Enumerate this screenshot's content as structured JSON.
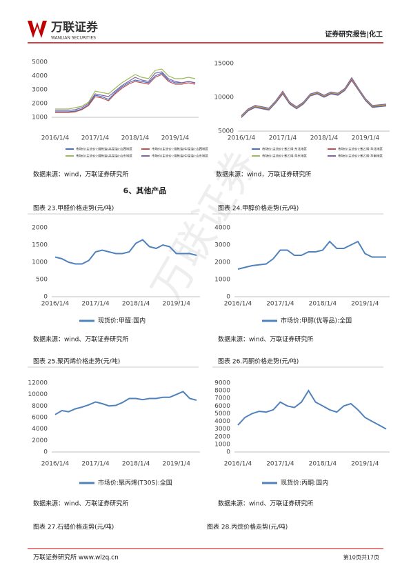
{
  "header": {
    "logo": "万联证券",
    "logo_en": "WANLIAN SECURITIES",
    "report_type": "证券研究报告|化工"
  },
  "watermark": "万联证券",
  "section_title": "6、其他产品",
  "charts": [
    {
      "type": "line",
      "source": "数据来源：wind，万联证券研究所",
      "categories": [
        "2016/1/4",
        null,
        null,
        null,
        null,
        null,
        "2017/1/4",
        null,
        null,
        null,
        null,
        null,
        "2018/1/4",
        null,
        null,
        null,
        null,
        null,
        "2019/1/4",
        null,
        null,
        null
      ],
      "ylim": [
        1000,
        5000
      ],
      "yticks": [
        1000,
        2000,
        3000,
        4000,
        5000
      ],
      "series": [
        {
          "name": "市场价(主流价):煤焦油(高温油):山西地区",
          "color": "#4472c4",
          "values": [
            1400,
            1400,
            1400,
            1450,
            1600,
            1900,
            2600,
            2500,
            2300,
            2800,
            3200,
            3500,
            3700,
            3600,
            3500,
            4000,
            4200,
            3700,
            3500,
            3500,
            3600,
            3500
          ]
        },
        {
          "name": "市场价(主流价):煤焦油(中温油):山西地区",
          "color": "#c0504d",
          "values": [
            1350,
            1350,
            1350,
            1400,
            1550,
            1850,
            2500,
            2400,
            2200,
            2700,
            3100,
            3400,
            3600,
            3500,
            3400,
            3900,
            4100,
            3600,
            3400,
            3400,
            3500,
            3400
          ]
        },
        {
          "name": "市场价(主流价):煤焦油(高温油):山东地区",
          "color": "#9bbb59",
          "values": [
            1600,
            1600,
            1600,
            1700,
            1800,
            2100,
            2900,
            2800,
            2700,
            3100,
            3500,
            3800,
            4100,
            3900,
            3800,
            4400,
            4500,
            4000,
            3800,
            3800,
            3900,
            3800
          ]
        },
        {
          "name": "市场价(主流价):煤焦油(中温油):山东地区",
          "color": "#8064a2",
          "values": [
            1500,
            1500,
            1500,
            1550,
            1700,
            2000,
            2700,
            2600,
            2500,
            2900,
            3300,
            3600,
            3900,
            3700,
            3600,
            4200,
            4300,
            3800,
            3600,
            3500,
            3600,
            3500
          ]
        }
      ]
    },
    {
      "type": "line",
      "source": "数据来源：wind，万联证券研究所",
      "categories": [
        "2016/1/4",
        null,
        null,
        null,
        null,
        null,
        "2017/1/4",
        null,
        null,
        null,
        null,
        null,
        "2018/1/4",
        null,
        null,
        null,
        null,
        null,
        "2019/1/4",
        null,
        null,
        null
      ],
      "ylim": [
        5000,
        15000
      ],
      "yticks": [
        5000,
        10000,
        15000
      ],
      "series": [
        {
          "name": "市场价(主流价):苯乙烯:东北地区",
          "color": "#4472c4",
          "values": [
            7000,
            8000,
            8500,
            8300,
            8100,
            9200,
            10500,
            9000,
            8300,
            9000,
            10200,
            10500,
            10000,
            10500,
            10300,
            11000,
            12500,
            11000,
            9500,
            8500,
            8600,
            8700
          ]
        },
        {
          "name": "市场价(主流价):苯乙烯:华北地区",
          "color": "#c0504d",
          "values": [
            7100,
            8100,
            8600,
            8400,
            8200,
            9300,
            10600,
            9100,
            8400,
            9100,
            10300,
            10600,
            10100,
            10600,
            10400,
            11100,
            12600,
            11100,
            9600,
            8600,
            8700,
            8800
          ]
        },
        {
          "name": "市场价(主流价):苯乙烯:华东地区",
          "color": "#9bbb59",
          "values": [
            7200,
            8200,
            8700,
            8500,
            8300,
            9400,
            10800,
            9200,
            8500,
            9200,
            10400,
            10700,
            10200,
            10700,
            10500,
            11200,
            12800,
            11200,
            9700,
            8700,
            8800,
            8900
          ]
        },
        {
          "name": "市场价(主流价):苯乙烯:华南地区",
          "color": "#8064a2",
          "values": [
            7300,
            8300,
            8800,
            8600,
            8400,
            9500,
            10900,
            9300,
            8600,
            9300,
            10500,
            10800,
            10300,
            10800,
            10600,
            11300,
            12900,
            11300,
            9800,
            8800,
            8900,
            9000
          ]
        }
      ]
    },
    {
      "type": "line",
      "caption": "图表 23.甲醛价格走势(元/吨)",
      "source": "数据来源：wind、万联证券研究所",
      "categories": [
        "2016/1/4",
        null,
        null,
        null,
        null,
        null,
        "2017/1/4",
        null,
        null,
        null,
        null,
        null,
        "2018/1/4",
        null,
        null,
        null,
        null,
        null,
        "2019/1/4",
        null,
        null,
        null
      ],
      "ylim": [
        0,
        2000
      ],
      "yticks": [
        0,
        500,
        1000,
        1500,
        2000
      ],
      "series": [
        {
          "name": "现货价:甲醛:国内",
          "color": "#4f81bd",
          "values": [
            1150,
            1100,
            1000,
            950,
            950,
            1050,
            1300,
            1350,
            1300,
            1250,
            1250,
            1300,
            1550,
            1650,
            1450,
            1400,
            1500,
            1450,
            1250,
            1250,
            1250,
            1200
          ]
        }
      ]
    },
    {
      "type": "line",
      "caption": "图表 24.甲醇价格走势(元/吨)",
      "source": "数据来源：wind、万联证券研究所",
      "categories": [
        "2016/1/4",
        null,
        null,
        null,
        null,
        null,
        "2017/1/4",
        null,
        null,
        null,
        null,
        null,
        "2018/1/4",
        null,
        null,
        null,
        null,
        null,
        "2019/1/4",
        null,
        null,
        null
      ],
      "ylim": [
        0,
        4000
      ],
      "yticks": [
        0,
        1000,
        2000,
        3000,
        4000
      ],
      "series": [
        {
          "name": "市场价:甲醇(优等品):全国",
          "color": "#4f81bd",
          "values": [
            1600,
            1700,
            1800,
            1850,
            1900,
            2200,
            2700,
            2700,
            2400,
            2400,
            2600,
            2600,
            2700,
            3200,
            2800,
            2800,
            3000,
            3200,
            2500,
            2300,
            2300,
            2300
          ]
        }
      ]
    },
    {
      "type": "line",
      "caption": "图表 25.聚丙烯价格走势(元/吨)",
      "source": "数据来源：wind、万联证券研究所",
      "categories": [
        "2016/1/4",
        null,
        null,
        null,
        null,
        null,
        "2017/1/4",
        null,
        null,
        null,
        null,
        null,
        "2018/1/4",
        null,
        null,
        null,
        null,
        null,
        "2019/1/4",
        null,
        null,
        null
      ],
      "ylim": [
        0,
        12000
      ],
      "yticks": [
        0,
        2000,
        4000,
        6000,
        8000,
        10000,
        12000
      ],
      "series": [
        {
          "name": "市场价:聚丙烯(T30S):全国",
          "color": "#4f81bd",
          "values": [
            6500,
            7200,
            7000,
            7500,
            7800,
            8200,
            8700,
            8400,
            8000,
            8100,
            8600,
            9300,
            9300,
            9100,
            9300,
            9300,
            9500,
            9500,
            10000,
            10500,
            9300,
            9000
          ]
        }
      ]
    },
    {
      "type": "line",
      "caption": "图表 26.丙酮价格走势(元/吨)",
      "source": "数据来源：wind、万联证券研究所",
      "categories": [
        "2016/1/4",
        null,
        null,
        null,
        null,
        null,
        "2017/1/4",
        null,
        null,
        null,
        null,
        null,
        "2018/1/4",
        null,
        null,
        null,
        null,
        null,
        "2019/1/4",
        null,
        null,
        null
      ],
      "ylim": [
        0,
        9000
      ],
      "yticks": [
        0,
        1000,
        2000,
        3000,
        4000,
        5000,
        6000,
        7000,
        8000,
        9000
      ],
      "series": [
        {
          "name": "现货价:丙酮:国内",
          "color": "#4f81bd",
          "values": [
            3500,
            4500,
            5000,
            5300,
            5200,
            5500,
            6500,
            6000,
            5800,
            6500,
            8000,
            6500,
            6000,
            5500,
            5200,
            6000,
            6300,
            5500,
            4500,
            4000,
            3500,
            3000
          ]
        }
      ]
    }
  ],
  "next_captions": [
    "图表 27.石蜡价格走势(元/吨)",
    "图表 28.丙烷价格走势(元/吨)"
  ],
  "footer": {
    "left": "万联证券研究所 www.wlzq.cn",
    "page": "第10页共17页"
  }
}
